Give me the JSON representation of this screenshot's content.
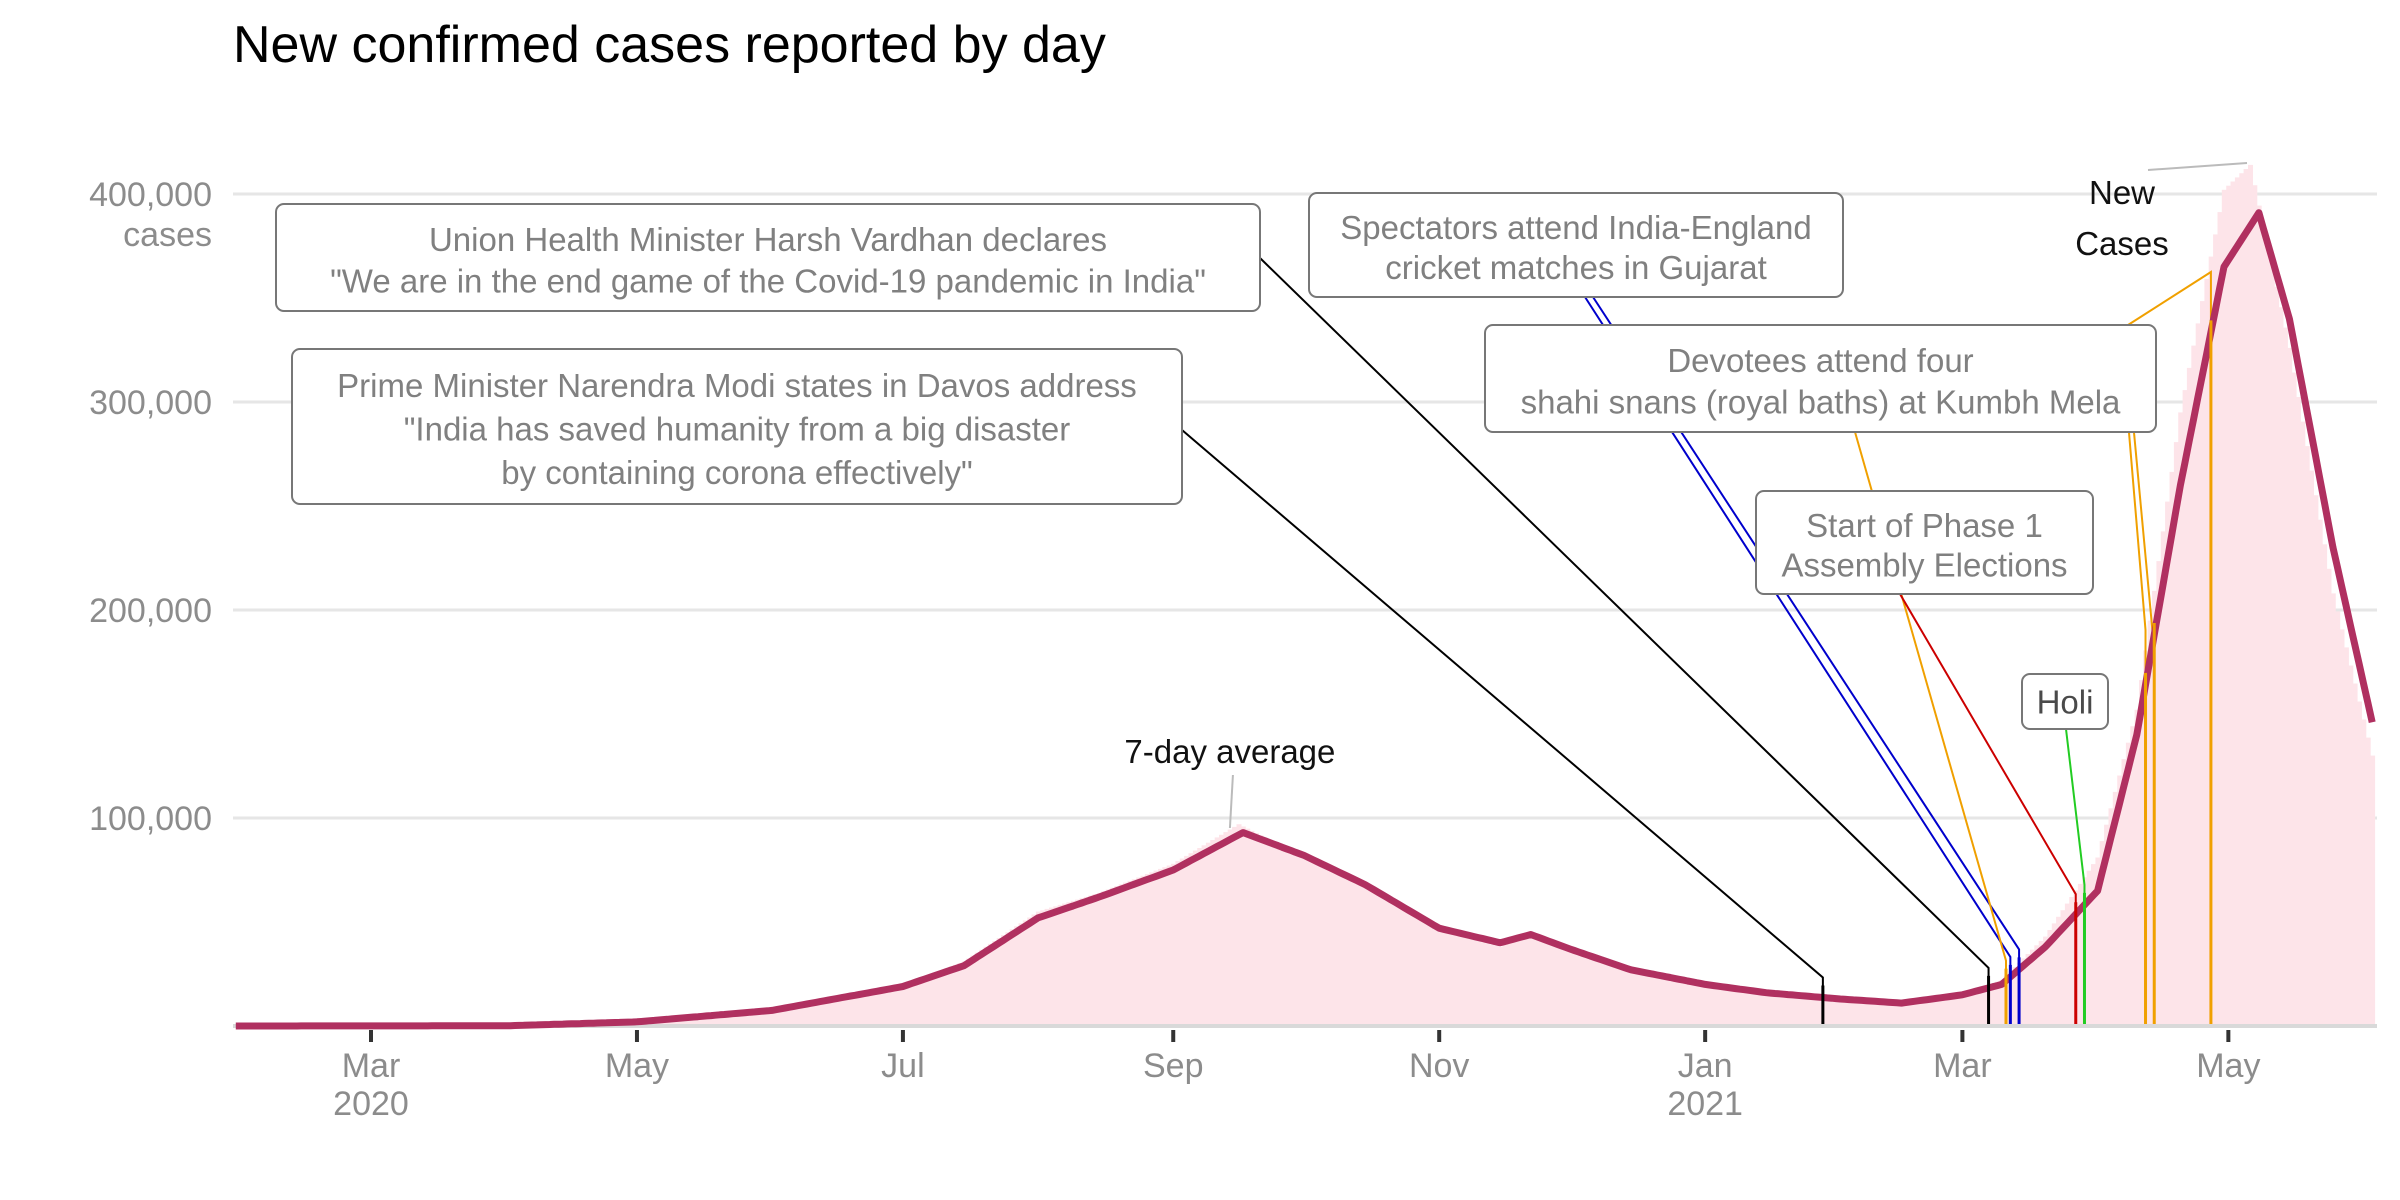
{
  "chart_data": {
    "type": "bar",
    "title": "New confirmed cases reported by day",
    "xlabel": "",
    "ylabel": "cases",
    "ylim": [
      0,
      420000
    ],
    "xlim": [
      "2020-01-30",
      "2021-06-03"
    ],
    "grid": true,
    "y_ticks": [
      {
        "value": 100000,
        "label": "100,000"
      },
      {
        "value": 200000,
        "label": "200,000"
      },
      {
        "value": 300000,
        "label": "300,000"
      },
      {
        "value": 400000,
        "label": "400,000",
        "sublabel": "cases"
      }
    ],
    "x_ticks": [
      {
        "date": "2020-03-01",
        "label": "Mar",
        "sublabel": "2020"
      },
      {
        "date": "2020-05-01",
        "label": "May",
        "sublabel": ""
      },
      {
        "date": "2020-07-01",
        "label": "Jul",
        "sublabel": ""
      },
      {
        "date": "2020-09-01",
        "label": "Sep",
        "sublabel": ""
      },
      {
        "date": "2020-11-01",
        "label": "Nov",
        "sublabel": ""
      },
      {
        "date": "2021-01-01",
        "label": "Jan",
        "sublabel": "2021"
      },
      {
        "date": "2021-03-01",
        "label": "Mar",
        "sublabel": ""
      },
      {
        "date": "2021-05-01",
        "label": "May",
        "sublabel": ""
      }
    ],
    "series": [
      {
        "name": "New Cases",
        "type": "bar",
        "color": "#fde4e9",
        "points": [
          [
            "2020-01-30",
            0
          ],
          [
            "2020-03-15",
            20
          ],
          [
            "2020-04-01",
            300
          ],
          [
            "2020-05-01",
            2300
          ],
          [
            "2020-06-01",
            8000
          ],
          [
            "2020-07-01",
            19500
          ],
          [
            "2020-07-15",
            31000
          ],
          [
            "2020-08-01",
            55000
          ],
          [
            "2020-08-15",
            64000
          ],
          [
            "2020-09-01",
            78000
          ],
          [
            "2020-09-16",
            97000
          ],
          [
            "2020-10-01",
            81000
          ],
          [
            "2020-10-15",
            67000
          ],
          [
            "2020-11-01",
            46000
          ],
          [
            "2020-11-15",
            38000
          ],
          [
            "2020-11-22",
            45000
          ],
          [
            "2020-12-01",
            36000
          ],
          [
            "2020-12-15",
            26000
          ],
          [
            "2021-01-01",
            19000
          ],
          [
            "2021-01-15",
            15500
          ],
          [
            "2021-02-01",
            12000
          ],
          [
            "2021-02-15",
            11500
          ],
          [
            "2021-03-01",
            15500
          ],
          [
            "2021-03-10",
            22000
          ],
          [
            "2021-03-20",
            43000
          ],
          [
            "2021-04-01",
            81000
          ],
          [
            "2021-04-10",
            152000
          ],
          [
            "2021-04-20",
            295000
          ],
          [
            "2021-04-30",
            402000
          ],
          [
            "2021-05-06",
            414000
          ],
          [
            "2021-05-15",
            326000
          ],
          [
            "2021-05-25",
            208000
          ],
          [
            "2021-06-03",
            130000
          ]
        ]
      },
      {
        "name": "7-day average",
        "type": "line",
        "color": "#b03060",
        "points": [
          [
            "2020-01-30",
            0
          ],
          [
            "2020-04-01",
            100
          ],
          [
            "2020-05-01",
            2000
          ],
          [
            "2020-06-01",
            7500
          ],
          [
            "2020-07-01",
            19000
          ],
          [
            "2020-07-15",
            29000
          ],
          [
            "2020-08-01",
            52000
          ],
          [
            "2020-08-15",
            62000
          ],
          [
            "2020-09-01",
            75000
          ],
          [
            "2020-09-17",
            93000
          ],
          [
            "2020-10-01",
            82000
          ],
          [
            "2020-10-15",
            68000
          ],
          [
            "2020-11-01",
            47000
          ],
          [
            "2020-11-15",
            40000
          ],
          [
            "2020-11-22",
            44000
          ],
          [
            "2020-12-01",
            37000
          ],
          [
            "2020-12-15",
            27000
          ],
          [
            "2021-01-01",
            20000
          ],
          [
            "2021-01-15",
            16000
          ],
          [
            "2021-02-01",
            13000
          ],
          [
            "2021-02-15",
            11000
          ],
          [
            "2021-03-01",
            15000
          ],
          [
            "2021-03-10",
            20000
          ],
          [
            "2021-03-20",
            38000
          ],
          [
            "2021-04-01",
            65000
          ],
          [
            "2021-04-10",
            140000
          ],
          [
            "2021-04-20",
            260000
          ],
          [
            "2021-04-30",
            365000
          ],
          [
            "2021-05-08",
            391000
          ],
          [
            "2021-05-15",
            340000
          ],
          [
            "2021-05-25",
            230000
          ],
          [
            "2021-06-03",
            146000
          ]
        ]
      }
    ],
    "series_labels": [
      {
        "text_lines": [
          "7-day average"
        ],
        "date": "2020-09-14"
      },
      {
        "text_lines": [
          "New",
          "Cases"
        ],
        "date": "2021-05-05"
      }
    ],
    "annotations": [
      {
        "id": "davos",
        "lines": [
          "Prime Minister Narendra Modi states in Davos address",
          "\"India has saved humanity from a big disaster",
          "by containing corona effectively\""
        ],
        "color": "#000000",
        "dates": [
          "2021-01-28"
        ]
      },
      {
        "id": "harsh-vardhan",
        "lines": [
          "Union Health Minister Harsh Vardhan declares",
          "\"We are in the end game of the Covid-19 pandemic in India\""
        ],
        "color": "#000000",
        "dates": [
          "2021-03-07"
        ]
      },
      {
        "id": "cricket",
        "lines": [
          "Spectators attend India-England",
          "cricket matches in Gujarat"
        ],
        "color": "#0000cc",
        "dates": [
          "2021-03-12",
          "2021-03-14"
        ]
      },
      {
        "id": "kumbh",
        "lines": [
          "Devotees attend four",
          "shahi snans (royal baths) at Kumbh Mela"
        ],
        "color": "#f0a000",
        "dates": [
          "2021-03-11",
          "2021-04-12",
          "2021-04-14",
          "2021-04-27"
        ]
      },
      {
        "id": "elections",
        "lines": [
          "Start of Phase 1",
          "Assembly Elections"
        ],
        "color": "#cc0000",
        "dates": [
          "2021-03-27"
        ]
      },
      {
        "id": "holi",
        "lines": [
          "Holi"
        ],
        "color": "#22cc22",
        "dates": [
          "2021-03-29"
        ]
      }
    ]
  }
}
